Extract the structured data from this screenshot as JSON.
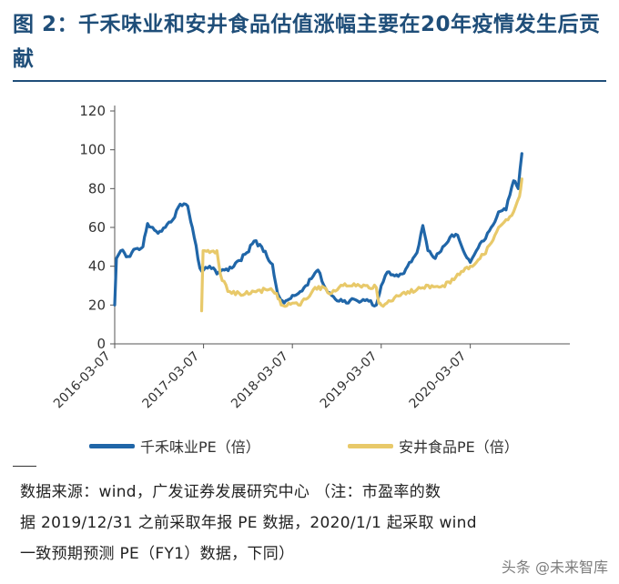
{
  "title": "图 2：千禾味业和安井食品估值涨幅主要在20年疫情发生后贡献",
  "source_lines": [
    "数据来源：wind，广发证券发展研究中心 （注：市盈率的数",
    "据 2019/12/31 之前采取年报 PE 数据，2020/1/1 起采取 wind",
    "一致预期预测 PE（FY1）数据，下同）"
  ],
  "watermark": "头条 @未来智库",
  "colors": {
    "title": "#1f4e79",
    "series1": "#2066a8",
    "series2": "#e8c96a",
    "axis": "#555555"
  },
  "chart_data": {
    "type": "line",
    "title": "",
    "xlabel": "",
    "ylabel": "",
    "ylim": [
      0,
      120
    ],
    "yticks": [
      0,
      20,
      40,
      60,
      80,
      100,
      120
    ],
    "xlim": [
      "2016-03-07",
      "2021-04-20"
    ],
    "xtick_labels": [
      "2016-03-07",
      "2017-03-07",
      "2018-03-07",
      "2019-03-07",
      "2020-03-07"
    ],
    "grid": false,
    "legend_position": "bottom",
    "series": [
      {
        "name": "千禾味业PE（倍）",
        "color": "#2066a8",
        "points": [
          [
            "2016-03-07",
            20
          ],
          [
            "2016-03-14",
            44
          ],
          [
            "2016-04-01",
            48
          ],
          [
            "2016-05-01",
            45
          ],
          [
            "2016-06-01",
            49
          ],
          [
            "2016-07-01",
            50
          ],
          [
            "2016-07-20",
            62
          ],
          [
            "2016-08-10",
            60
          ],
          [
            "2016-09-01",
            57
          ],
          [
            "2016-10-01",
            60
          ],
          [
            "2016-11-01",
            64
          ],
          [
            "2016-12-01",
            72
          ],
          [
            "2017-01-01",
            71
          ],
          [
            "2017-01-20",
            60
          ],
          [
            "2017-02-20",
            39
          ],
          [
            "2017-03-07",
            38
          ],
          [
            "2017-04-01",
            40
          ],
          [
            "2017-05-01",
            36
          ],
          [
            "2017-06-01",
            38
          ],
          [
            "2017-07-01",
            39
          ],
          [
            "2017-08-01",
            43
          ],
          [
            "2017-09-01",
            47
          ],
          [
            "2017-10-01",
            53
          ],
          [
            "2017-11-01",
            50
          ],
          [
            "2017-12-15",
            41
          ],
          [
            "2018-01-05",
            26
          ],
          [
            "2018-02-01",
            21
          ],
          [
            "2018-03-07",
            25
          ],
          [
            "2018-04-01",
            26
          ],
          [
            "2018-05-01",
            30
          ],
          [
            "2018-06-01",
            35
          ],
          [
            "2018-06-20",
            38
          ],
          [
            "2018-07-15",
            30
          ],
          [
            "2018-08-15",
            25
          ],
          [
            "2018-09-15",
            22
          ],
          [
            "2018-10-15",
            21
          ],
          [
            "2018-11-15",
            23
          ],
          [
            "2018-12-15",
            22
          ],
          [
            "2019-01-15",
            22
          ],
          [
            "2019-02-15",
            20
          ],
          [
            "2019-03-07",
            30
          ],
          [
            "2019-04-01",
            37
          ],
          [
            "2019-05-01",
            35
          ],
          [
            "2019-06-01",
            36
          ],
          [
            "2019-07-01",
            42
          ],
          [
            "2019-08-01",
            47
          ],
          [
            "2019-08-25",
            61
          ],
          [
            "2019-09-15",
            48
          ],
          [
            "2019-10-15",
            44
          ],
          [
            "2019-11-15",
            50
          ],
          [
            "2019-12-15",
            55
          ],
          [
            "2020-01-15",
            56
          ],
          [
            "2020-02-15",
            46
          ],
          [
            "2020-03-07",
            42
          ],
          [
            "2020-04-01",
            48
          ],
          [
            "2020-05-01",
            53
          ],
          [
            "2020-06-01",
            60
          ],
          [
            "2020-07-01",
            68
          ],
          [
            "2020-08-01",
            69
          ],
          [
            "2020-09-01",
            84
          ],
          [
            "2020-09-20",
            80
          ],
          [
            "2020-10-05",
            98
          ]
        ]
      },
      {
        "name": "安井食品PE（倍）",
        "color": "#e8c96a",
        "points": [
          [
            "2017-02-27",
            17
          ],
          [
            "2017-03-05",
            48
          ],
          [
            "2017-04-01",
            47
          ],
          [
            "2017-05-01",
            48
          ],
          [
            "2017-05-15",
            36
          ],
          [
            "2017-06-15",
            27
          ],
          [
            "2017-08-01",
            26
          ],
          [
            "2017-10-01",
            27
          ],
          [
            "2017-12-01",
            28
          ],
          [
            "2018-01-01",
            26
          ],
          [
            "2018-01-20",
            20
          ],
          [
            "2018-03-07",
            21
          ],
          [
            "2018-04-01",
            20
          ],
          [
            "2018-05-01",
            23
          ],
          [
            "2018-06-01",
            28
          ],
          [
            "2018-07-15",
            29
          ],
          [
            "2018-08-15",
            26
          ],
          [
            "2018-10-01",
            30
          ],
          [
            "2018-11-15",
            31
          ],
          [
            "2019-01-01",
            30
          ],
          [
            "2019-02-15",
            29
          ],
          [
            "2019-02-25",
            21
          ],
          [
            "2019-03-07",
            20
          ],
          [
            "2019-04-15",
            22
          ],
          [
            "2019-06-01",
            26
          ],
          [
            "2019-08-01",
            28
          ],
          [
            "2019-10-01",
            30
          ],
          [
            "2019-11-15",
            30
          ],
          [
            "2019-12-31",
            33
          ],
          [
            "2020-01-15",
            36
          ],
          [
            "2020-02-15",
            39
          ],
          [
            "2020-03-07",
            40
          ],
          [
            "2020-04-01",
            42
          ],
          [
            "2020-05-01",
            46
          ],
          [
            "2020-06-01",
            52
          ],
          [
            "2020-07-01",
            60
          ],
          [
            "2020-08-01",
            64
          ],
          [
            "2020-09-01",
            68
          ],
          [
            "2020-09-25",
            76
          ],
          [
            "2020-10-05",
            85
          ]
        ]
      }
    ]
  }
}
